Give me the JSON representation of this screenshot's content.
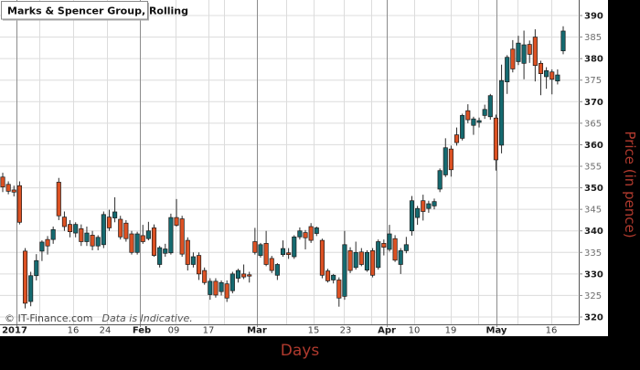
{
  "title": "Marks & Spencer Group, Rolling",
  "watermark": {
    "copyright": "© IT-Finance.com",
    "note": "Data is Indicative."
  },
  "colors": {
    "up": "#156a70",
    "down": "#dc5123",
    "wick": "#2b2b2b",
    "candle_border": "#1a1a1a",
    "grid": "#dcdcdc",
    "month_line": "#8c8c8c",
    "axis": "#555555",
    "label_red": "#b03a2e",
    "tick_major": "#1c1c1c",
    "tick_minor": "#6e6e6e",
    "x_tick": "#3a3a3a",
    "plot_bg": "#ffffff",
    "outer_bg": "#000000"
  },
  "chart_data": {
    "type": "candlestick",
    "title": "Marks & Spencer Group, Rolling",
    "xlabel": "Days",
    "ylabel": "Price (in pence)",
    "ylim": [
      320,
      390
    ],
    "y_tick_step": 5,
    "grid": true,
    "y_ticks": [
      390,
      385,
      380,
      375,
      370,
      365,
      360,
      355,
      350,
      345,
      340,
      335,
      330,
      325,
      320
    ],
    "x_ticks": [
      {
        "label": "2017",
        "x": 16,
        "bold": true
      },
      {
        "label": "16",
        "x": 80,
        "bold": false
      },
      {
        "label": "24",
        "x": 115,
        "bold": false
      },
      {
        "label": "Feb",
        "x": 155,
        "bold": true
      },
      {
        "label": "09",
        "x": 190,
        "bold": false
      },
      {
        "label": "17",
        "x": 228,
        "bold": false
      },
      {
        "label": "Mar",
        "x": 281,
        "bold": true
      },
      {
        "label": "15",
        "x": 343,
        "bold": false
      },
      {
        "label": "23",
        "x": 378,
        "bold": false
      },
      {
        "label": "Apr",
        "x": 423,
        "bold": true
      },
      {
        "label": "10",
        "x": 453,
        "bold": false
      },
      {
        "label": "19",
        "x": 493,
        "bold": false
      },
      {
        "label": "May",
        "x": 543,
        "bold": true
      },
      {
        "label": "16",
        "x": 603,
        "bold": false
      }
    ],
    "grid_x_light": [
      43,
      80,
      117,
      192,
      228,
      245,
      313,
      343,
      376,
      406,
      453,
      493,
      523,
      566,
      603
    ],
    "grid_x_month": [
      18,
      153,
      281,
      423,
      543
    ],
    "x_start": 3,
    "x_step": 6.13,
    "ohlc_note": "candles are [open, high, low, close] in pence, one per trading day",
    "candles": [
      [
        352.5,
        353.5,
        349,
        350.2
      ],
      [
        350.8,
        351.5,
        348.5,
        349.2
      ],
      [
        349.5,
        350.5,
        348,
        349
      ],
      [
        350.5,
        351.5,
        341.5,
        342
      ],
      [
        335.3,
        336,
        322,
        323.2
      ],
      [
        323.6,
        330.5,
        322.5,
        329.6
      ],
      [
        329.6,
        334.6,
        328.5,
        333.1
      ],
      [
        335.3,
        337.8,
        333,
        337.4
      ],
      [
        338,
        338.8,
        334.5,
        336.5
      ],
      [
        338,
        341,
        337,
        340.3
      ],
      [
        351.3,
        352.3,
        342.5,
        343.5
      ],
      [
        343.2,
        344.5,
        340,
        341
      ],
      [
        341.5,
        342.5,
        338.5,
        339.8
      ],
      [
        339.5,
        342,
        338.5,
        341.5
      ],
      [
        340.5,
        341.5,
        336.5,
        337.5
      ],
      [
        337.5,
        341,
        336.5,
        339.5
      ],
      [
        339,
        340,
        335.5,
        336.5
      ],
      [
        336.5,
        339,
        335.5,
        338.5
      ],
      [
        336.8,
        344.5,
        336,
        343.8
      ],
      [
        343.2,
        344.9,
        340,
        340.7
      ],
      [
        343,
        347.8,
        342,
        344.4
      ],
      [
        342.7,
        343.5,
        338,
        338.6
      ],
      [
        341.8,
        342.5,
        337.5,
        338.2
      ],
      [
        339.3,
        340,
        334.5,
        335
      ],
      [
        335,
        339.8,
        334.5,
        339.3
      ],
      [
        338.9,
        341.4,
        337,
        337.5
      ],
      [
        338.2,
        342.1,
        337.8,
        340
      ],
      [
        340.7,
        341.5,
        334,
        334.3
      ],
      [
        332.2,
        336.5,
        331.5,
        336.1
      ],
      [
        334.8,
        337,
        334,
        335.8
      ],
      [
        334.9,
        344,
        334.5,
        343.1
      ],
      [
        343.1,
        347.4,
        341,
        341.3
      ],
      [
        342.8,
        343.5,
        334,
        334.6
      ],
      [
        337.8,
        338.5,
        330.8,
        332.2
      ],
      [
        332.2,
        335,
        331.5,
        334
      ],
      [
        334.3,
        335,
        328.6,
        330
      ],
      [
        330.8,
        331.5,
        327.5,
        328
      ],
      [
        325.2,
        329,
        324,
        328.3
      ],
      [
        328.3,
        329,
        324.5,
        325.1
      ],
      [
        325.9,
        328.5,
        325,
        328
      ],
      [
        327.7,
        328.5,
        323.5,
        324.4
      ],
      [
        326.1,
        330.5,
        325.5,
        330
      ],
      [
        329,
        331.2,
        328,
        330.8
      ],
      [
        330,
        332.2,
        328.8,
        329.3
      ],
      [
        329.8,
        330.5,
        328,
        329.5
      ],
      [
        337.5,
        340.7,
        334.5,
        335
      ],
      [
        334.3,
        337.2,
        333.8,
        336.8
      ],
      [
        337.1,
        340,
        331.8,
        332.2
      ],
      [
        333.6,
        334.2,
        330.2,
        330.8
      ],
      [
        329.7,
        332.5,
        328.6,
        332.2
      ],
      [
        334.5,
        337.8,
        334,
        335.9
      ],
      [
        334.9,
        336,
        333.5,
        334.5
      ],
      [
        334,
        339,
        333.5,
        338.6
      ],
      [
        338.6,
        340.8,
        338,
        340
      ],
      [
        339.6,
        340.2,
        335.7,
        338.4
      ],
      [
        341,
        341.8,
        337.2,
        337.8
      ],
      [
        339.4,
        341,
        338.8,
        340.7
      ],
      [
        337.8,
        338.2,
        329,
        329.7
      ],
      [
        330.7,
        331.2,
        328,
        328.4
      ],
      [
        328.6,
        330,
        327.8,
        329.7
      ],
      [
        328.6,
        329.2,
        322.4,
        324.4
      ],
      [
        324.8,
        340,
        324,
        336.8
      ],
      [
        335.4,
        336.2,
        330.2,
        330.8
      ],
      [
        331.5,
        337.5,
        331,
        335
      ],
      [
        335.1,
        336,
        331.8,
        332.2
      ],
      [
        330.9,
        335.5,
        330.5,
        335
      ],
      [
        335.4,
        336,
        329.2,
        329.7
      ],
      [
        331.5,
        338,
        331,
        337.5
      ],
      [
        337.1,
        338,
        334.3,
        336.2
      ],
      [
        335.7,
        341.4,
        335.2,
        339.3
      ],
      [
        338.2,
        339,
        332.8,
        333.2
      ],
      [
        332.2,
        336,
        330,
        335.4
      ],
      [
        335.4,
        338.6,
        334.8,
        336.8
      ],
      [
        340,
        348.1,
        338.9,
        347
      ],
      [
        343.1,
        345.8,
        341.4,
        345.2
      ],
      [
        347,
        348.4,
        342.4,
        344.5
      ],
      [
        345.2,
        347,
        344.2,
        346.3
      ],
      [
        345.8,
        347.5,
        345,
        346.8
      ],
      [
        349.7,
        354.5,
        349,
        354
      ],
      [
        353,
        361.5,
        352.5,
        359.3
      ],
      [
        359,
        359.8,
        352.6,
        354.2
      ],
      [
        362.3,
        364,
        359.8,
        360.5
      ],
      [
        361.5,
        367.2,
        361,
        366.8
      ],
      [
        367.9,
        369.4,
        365,
        365.8
      ],
      [
        364.5,
        366.5,
        362.3,
        366
      ],
      [
        365.2,
        366.3,
        364,
        365.6
      ],
      [
        366.8,
        369.3,
        366,
        368.2
      ],
      [
        366.5,
        371.8,
        365.8,
        371.4
      ],
      [
        366.2,
        367,
        354,
        356.5
      ],
      [
        359.9,
        378.6,
        358,
        374.9
      ],
      [
        374.6,
        380.8,
        371.8,
        380.3
      ],
      [
        382.2,
        384.3,
        376.8,
        377.6
      ],
      [
        379.3,
        385.3,
        378.5,
        383.6
      ],
      [
        378.9,
        386.5,
        375.2,
        383.2
      ],
      [
        383.3,
        384.2,
        379,
        381
      ],
      [
        385,
        386.8,
        374.7,
        378.4
      ],
      [
        378.9,
        379.5,
        371.5,
        376.5
      ],
      [
        375.8,
        378,
        373,
        377.2
      ],
      [
        376.9,
        377.5,
        371.7,
        375.2
      ],
      [
        374.8,
        377.5,
        374,
        376.2
      ],
      [
        381.8,
        387.5,
        381,
        386.4
      ]
    ]
  }
}
